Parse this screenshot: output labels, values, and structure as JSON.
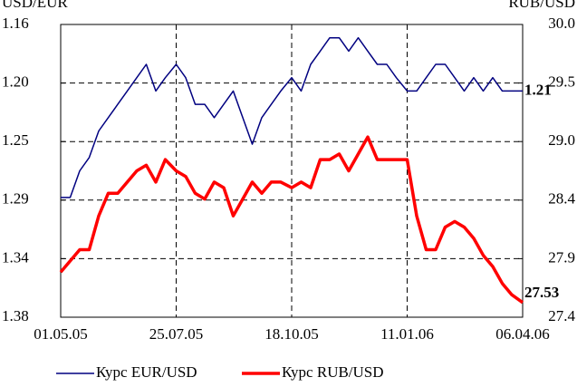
{
  "chart_data": {
    "type": "line",
    "y_label": "USD/EUR",
    "y2_label": "RUB/USD",
    "x": [
      "01.05.05",
      "08.05.05",
      "15.05.05",
      "22.05.05",
      "29.05.05",
      "05.06.05",
      "12.06.05",
      "19.06.05",
      "26.06.05",
      "03.07.05",
      "10.07.05",
      "17.07.05",
      "25.07.05",
      "01.08.05",
      "08.08.05",
      "15.08.05",
      "22.08.05",
      "29.08.05",
      "05.09.05",
      "12.09.05",
      "19.09.05",
      "26.09.05",
      "03.10.05",
      "10.10.05",
      "18.10.05",
      "25.10.05",
      "01.11.05",
      "08.11.05",
      "15.11.05",
      "22.11.05",
      "29.11.05",
      "06.12.05",
      "13.12.05",
      "20.12.05",
      "27.12.05",
      "03.01.06",
      "11.01.06",
      "18.01.06",
      "25.01.06",
      "01.02.06",
      "08.02.06",
      "15.02.06",
      "22.02.06",
      "01.03.06",
      "08.03.06",
      "15.03.06",
      "22.03.06",
      "29.03.06",
      "06.04.06"
    ],
    "xlim": [
      "01.05.05",
      "06.04.06"
    ],
    "xticks": [
      "01.05.05",
      "25.07.05",
      "18.10.05",
      "11.01.06",
      "06.04.06"
    ],
    "ylim": [
      1.16,
      1.38
    ],
    "y_inverted": true,
    "yticks": [
      {
        "value": 1.16,
        "label": "1.16"
      },
      {
        "value": 1.204,
        "label": "1.20"
      },
      {
        "value": 1.248,
        "label": "1.25"
      },
      {
        "value": 1.292,
        "label": "1.29"
      },
      {
        "value": 1.336,
        "label": "1.34"
      },
      {
        "value": 1.38,
        "label": "1.38"
      }
    ],
    "y2lim": [
      27.4,
      30.0
    ],
    "y2ticks": [
      {
        "value": 30.0,
        "label": "30.0"
      },
      {
        "value": 29.48,
        "label": "29.5"
      },
      {
        "value": 28.96,
        "label": "29.0"
      },
      {
        "value": 28.44,
        "label": "28.4"
      },
      {
        "value": 27.92,
        "label": "27.9"
      },
      27.4
    ],
    "grid": true,
    "series": [
      {
        "name": "Курс EUR/USD",
        "color": "#000080",
        "width": 1.5,
        "values": [
          1.29,
          1.29,
          1.27,
          1.26,
          1.24,
          1.23,
          1.22,
          1.21,
          1.2,
          1.19,
          1.21,
          1.2,
          1.19,
          1.2,
          1.22,
          1.22,
          1.23,
          1.22,
          1.21,
          1.23,
          1.25,
          1.23,
          1.22,
          1.21,
          1.2,
          1.21,
          1.19,
          1.18,
          1.17,
          1.17,
          1.18,
          1.17,
          1.18,
          1.19,
          1.19,
          1.2,
          1.21,
          1.21,
          1.2,
          1.19,
          1.19,
          1.2,
          1.21,
          1.2,
          1.21,
          1.2,
          1.21,
          1.21,
          1.21
        ]
      },
      {
        "name": "Курс RUB/USD",
        "color": "#ff0000",
        "width": 3.5,
        "axis": "y2",
        "values": [
          27.8,
          27.9,
          28.0,
          28.0,
          28.3,
          28.5,
          28.5,
          28.6,
          28.7,
          28.75,
          28.6,
          28.8,
          28.7,
          28.65,
          28.5,
          28.45,
          28.6,
          28.55,
          28.3,
          28.45,
          28.6,
          28.5,
          28.6,
          28.6,
          28.55,
          28.6,
          28.55,
          28.8,
          28.8,
          28.85,
          28.7,
          28.85,
          29.0,
          28.8,
          28.8,
          28.8,
          28.8,
          28.3,
          28.0,
          28.0,
          28.2,
          28.25,
          28.2,
          28.1,
          27.95,
          27.85,
          27.7,
          27.6,
          27.53
        ]
      }
    ],
    "end_labels": [
      "1.21",
      "27.53"
    ],
    "legend": "bottom"
  }
}
